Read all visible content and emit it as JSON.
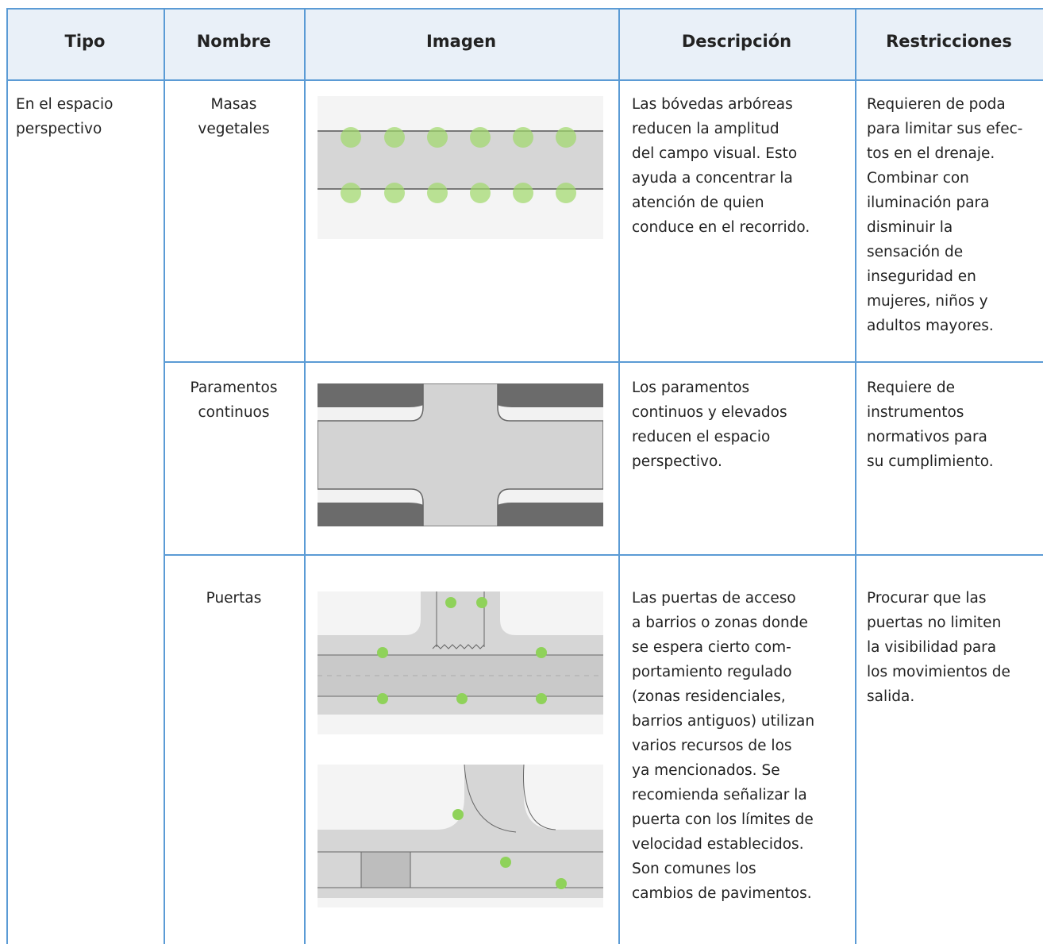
{
  "table": {
    "header": [
      "Tipo",
      "Nombre",
      "Imagen",
      "Descripción",
      "Restricciones"
    ],
    "tipo": [
      "En el espacio",
      "perspectivo"
    ],
    "rows": [
      {
        "nombre": [
          "Masas",
          "vegetales"
        ],
        "descripcion": [
          "Las bóvedas arbóreas",
          "reducen la amplitud",
          "del campo visual. Esto",
          "ayuda a concentrar la",
          "atención de quien",
          "conduce en el recorrido."
        ],
        "restricciones": [
          "Requieren de poda",
          "para limitar sus efec-",
          "tos en el drenaje.",
          "Combinar con",
          "iluminación para",
          "disminuir la",
          "sensación de",
          "inseguridad en",
          "mujeres, niños y",
          "adultos mayores."
        ]
      },
      {
        "nombre": [
          "Paramentos",
          "continuos"
        ],
        "descripcion": [
          "Los paramentos",
          "continuos y elevados",
          "reducen el espacio",
          "perspectivo."
        ],
        "restricciones": [
          "Requiere de",
          "instrumentos",
          "normativos para",
          "su cumplimiento."
        ]
      },
      {
        "nombre": [
          "Puertas"
        ],
        "descripcion": [
          "Las puertas de acceso",
          "a barrios o zonas donde",
          "se espera cierto com-",
          "portamiento regulado",
          "(zonas residenciales,",
          "barrios antiguos) utilizan",
          "varios recursos de los",
          "ya mencionados. Se",
          "recomienda señalizar la",
          "puerta con los límites de",
          "velocidad establecidos.",
          "Son comunes los",
          "cambios de pavimentos."
        ],
        "restricciones": [
          "Procurar que las",
          "puertas no limiten",
          "la visibilidad para",
          "los movimientos de",
          "salida."
        ]
      }
    ]
  }
}
